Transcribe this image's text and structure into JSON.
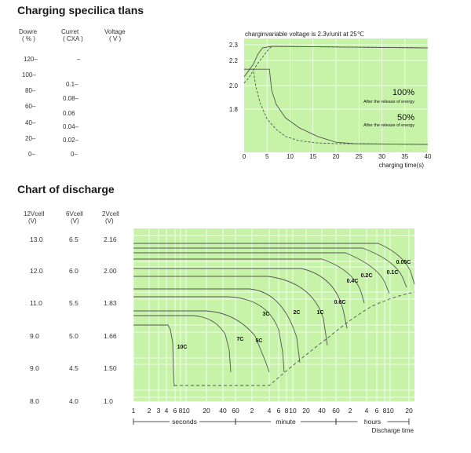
{
  "titles": {
    "charging": "Charging specilica tlans",
    "discharge": "Chart of discharge"
  },
  "charging_table": {
    "headers": {
      "col1": [
        "Dowre",
        "( % )"
      ],
      "col2": [
        "Curret",
        "( CXA )"
      ],
      "col3": [
        "Voltage",
        "( V )"
      ]
    },
    "col1_values": [
      "120–",
      "100–",
      "80–",
      "60–",
      "40–",
      "20–",
      "0–"
    ],
    "col2_values": [
      "–",
      "0.1–",
      "0.08–",
      "0.06",
      "0.04–",
      "0.02–",
      "0–"
    ]
  },
  "discharge_table": {
    "headers": {
      "col1": [
        "12Vcell",
        "(V)"
      ],
      "col2": [
        "6Vcell",
        "(V)"
      ],
      "col3": [
        "2Vcell",
        "(V)"
      ]
    },
    "rows": [
      [
        "13.0",
        "6.5",
        "2.16"
      ],
      [
        "12.0",
        "6.0",
        "2.00"
      ],
      [
        "11.0",
        "5.5",
        "1.83"
      ],
      [
        "9.0",
        "5.0",
        "1.66"
      ],
      [
        "9.0",
        "4.5",
        "1.50"
      ],
      [
        "8.0",
        "4.0",
        "1.0"
      ]
    ]
  },
  "colors": {
    "plot_bg": "#c6f3a8",
    "grid": "#ffffff",
    "curve": "#555555"
  },
  "chart_data": [
    {
      "type": "line",
      "title": "charginvariable voltage is 2.3v/unit at 25℃",
      "xlabel": "charging time(s)",
      "x_ticks": [
        0,
        5,
        10,
        15,
        20,
        25,
        30,
        35,
        40
      ],
      "y_ticks": [
        1.8,
        2.0,
        2.2,
        2.3
      ],
      "xlim": [
        0,
        40
      ],
      "ylim": [
        1.5,
        2.35
      ],
      "annotations": [
        {
          "label": "100%",
          "sub": "After the release of energy"
        },
        {
          "label": "50%",
          "sub": "After the release of energy"
        }
      ],
      "series": [
        {
          "style": "solid",
          "points": [
            [
              0,
              2.07
            ],
            [
              1,
              2.12
            ],
            [
              2,
              2.17
            ],
            [
              3,
              2.24
            ],
            [
              4,
              2.28
            ],
            [
              6,
              2.29
            ],
            [
              40,
              2.28
            ]
          ]
        },
        {
          "style": "dashed",
          "points": [
            [
              0,
              2.02
            ],
            [
              1,
              2.06
            ],
            [
              2,
              2.12
            ],
            [
              3,
              2.18
            ],
            [
              4,
              2.22
            ],
            [
              5,
              2.26
            ],
            [
              6,
              2.29
            ],
            [
              40,
              2.28
            ]
          ]
        },
        {
          "style": "solid",
          "points": [
            [
              0,
              2.13
            ],
            [
              5.5,
              2.13
            ],
            [
              6,
              1.96
            ],
            [
              7,
              1.84
            ],
            [
              9,
              1.74
            ],
            [
              12,
              1.67
            ],
            [
              16,
              1.61
            ],
            [
              20,
              1.57
            ],
            [
              24,
              1.56
            ],
            [
              40,
              1.555
            ]
          ]
        },
        {
          "style": "dashed",
          "points": [
            [
              0,
              2.13
            ],
            [
              2,
              2.13
            ],
            [
              2.5,
              2.0
            ],
            [
              3.5,
              1.85
            ],
            [
              5,
              1.73
            ],
            [
              7,
              1.66
            ],
            [
              9,
              1.61
            ],
            [
              12,
              1.58
            ],
            [
              16,
              1.565
            ],
            [
              20,
              1.56
            ],
            [
              40,
              1.555
            ]
          ]
        }
      ]
    },
    {
      "type": "line",
      "xlabel": "Discharge time",
      "x_ticks": [
        "1",
        "2",
        "3",
        "4",
        "6",
        "8",
        "10",
        "20",
        "40",
        "60",
        "2",
        "4",
        "6",
        "8",
        "10",
        "20",
        "40",
        "60",
        "2",
        "4",
        "6",
        "8",
        "10",
        "20"
      ],
      "x_groups": [
        "seconds",
        "minute",
        "hours"
      ],
      "curve_labels": [
        "10C",
        "7C",
        "5C",
        "3C",
        "2C",
        "1C",
        "0.6C",
        "0.4C",
        "0.2C",
        "0.1C",
        "0.05C"
      ]
    }
  ]
}
